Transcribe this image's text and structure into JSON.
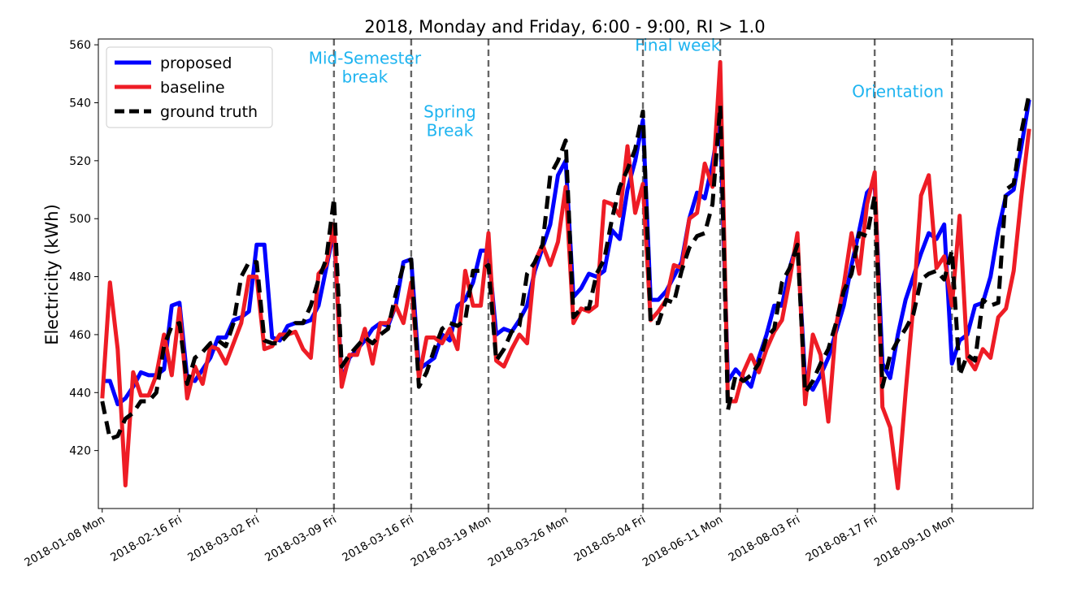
{
  "chart_data": {
    "type": "line",
    "title": "2018, Monday and Friday, 6:00 - 9:00, RI > 1.0",
    "xlabel": "",
    "ylabel": "Electricity (kWh)",
    "ylim": [
      400,
      562
    ],
    "yticks": [
      420,
      440,
      460,
      480,
      500,
      520,
      540,
      560
    ],
    "xlim": [
      -0.5,
      120.5
    ],
    "xticks": [
      {
        "x": 0,
        "label": "2018-01-08 Mon"
      },
      {
        "x": 10,
        "label": "2018-02-16 Fri"
      },
      {
        "x": 20,
        "label": "2018-03-02 Fri"
      },
      {
        "x": 30,
        "label": "2018-03-09 Fri"
      },
      {
        "x": 40,
        "label": "2018-03-16 Fri"
      },
      {
        "x": 50,
        "label": "2018-03-19 Mon"
      },
      {
        "x": 60,
        "label": "2018-03-26 Mon"
      },
      {
        "x": 70,
        "label": "2018-05-04 Fri"
      },
      {
        "x": 80,
        "label": "2018-06-11 Mon"
      },
      {
        "x": 90,
        "label": "2018-08-03 Fri"
      },
      {
        "x": 100,
        "label": "2018-08-17 Fri"
      },
      {
        "x": 110,
        "label": "2018-09-10 Mon"
      }
    ],
    "vlines": [
      30,
      40,
      50,
      70,
      80,
      100,
      110
    ],
    "vline_color": "#666666",
    "annotations": [
      {
        "lines": [
          "Mid-Semester",
          "break"
        ],
        "x": 34,
        "y": 553.5
      },
      {
        "lines": [
          "Spring",
          "Break"
        ],
        "x": 45,
        "y": 535
      },
      {
        "lines": [
          "Final week"
        ],
        "x": 74.5,
        "y": 558
      },
      {
        "lines": [
          "Orientation"
        ],
        "x": 103,
        "y": 542
      }
    ],
    "annotation_color": "#1eb4f0",
    "legend": {
      "position": "top-left",
      "entries": [
        "proposed",
        "baseline",
        "ground truth"
      ]
    },
    "grid": false,
    "series": [
      {
        "name": "proposed",
        "color": "#0000ff",
        "style": "solid",
        "values": [
          444,
          444,
          436,
          438,
          442,
          447,
          446,
          446,
          448,
          470,
          471,
          445,
          444,
          448,
          452,
          459,
          459,
          465,
          466,
          468,
          491,
          491,
          459,
          458,
          463,
          464,
          464,
          465,
          470,
          483,
          496,
          444,
          452,
          455,
          458,
          462,
          464,
          463,
          470,
          485,
          486,
          448,
          450,
          452,
          460,
          458,
          470,
          472,
          478,
          489,
          489,
          460,
          462,
          461,
          465,
          470,
          482,
          490,
          498,
          515,
          520,
          473,
          476,
          481,
          480,
          482,
          496,
          493,
          510,
          520,
          534,
          472,
          472,
          475,
          480,
          485,
          500,
          509,
          507,
          519,
          535,
          444,
          448,
          445,
          442,
          452,
          460,
          470,
          470,
          483,
          492,
          444,
          441,
          446,
          452,
          461,
          470,
          484,
          496,
          509,
          512,
          450,
          445,
          460,
          472,
          480,
          488,
          495,
          493,
          498,
          450,
          458,
          460,
          470,
          471,
          480,
          496,
          508,
          510,
          525,
          541
        ]
      },
      {
        "name": "baseline",
        "color": "#ee1c25",
        "style": "solid",
        "values": [
          438,
          478,
          455,
          408,
          447,
          439,
          439,
          446,
          460,
          446,
          469,
          438,
          449,
          443,
          456,
          455,
          450,
          457,
          464,
          480,
          480,
          455,
          456,
          460,
          460,
          461,
          455,
          452,
          481,
          484,
          498,
          442,
          453,
          453,
          462,
          450,
          464,
          464,
          470,
          464,
          478,
          445,
          459,
          459,
          457,
          462,
          455,
          482,
          470,
          470,
          495,
          451,
          449,
          455,
          460,
          457,
          485,
          491,
          484,
          492,
          511,
          464,
          469,
          468,
          470,
          506,
          505,
          501,
          525,
          502,
          512,
          465,
          468,
          472,
          484,
          483,
          500,
          502,
          519,
          511,
          554,
          437,
          437,
          447,
          453,
          447,
          455,
          461,
          465,
          479,
          495,
          436,
          460,
          453,
          430,
          463,
          477,
          495,
          481,
          505,
          516,
          435,
          428,
          407,
          440,
          470,
          508,
          515,
          483,
          487,
          470,
          501,
          452,
          448,
          455,
          452,
          466,
          469,
          482,
          508,
          531
        ]
      },
      {
        "name": "ground truth",
        "color": "#000000",
        "style": "dashed",
        "values": [
          437,
          424,
          425,
          431,
          433,
          437,
          437,
          440,
          456,
          463,
          464,
          443,
          452,
          454,
          457,
          458,
          456,
          464,
          480,
          485,
          485,
          458,
          457,
          457,
          460,
          464,
          464,
          470,
          479,
          486,
          507,
          449,
          453,
          456,
          459,
          457,
          460,
          462,
          474,
          484,
          486,
          442,
          447,
          455,
          462,
          464,
          463,
          465,
          482,
          482,
          484,
          451,
          455,
          461,
          463,
          481,
          485,
          491,
          515,
          520,
          527,
          466,
          469,
          469,
          481,
          486,
          500,
          511,
          517,
          524,
          537,
          464,
          464,
          472,
          471,
          482,
          490,
          494,
          495,
          505,
          539,
          434,
          446,
          444,
          446,
          450,
          459,
          462,
          478,
          483,
          491,
          440,
          444,
          450,
          455,
          464,
          475,
          481,
          495,
          494,
          508,
          442,
          453,
          458,
          462,
          467,
          479,
          481,
          482,
          479,
          489,
          446,
          453,
          451,
          472,
          470,
          471,
          510,
          512,
          530,
          543
        ]
      }
    ]
  }
}
